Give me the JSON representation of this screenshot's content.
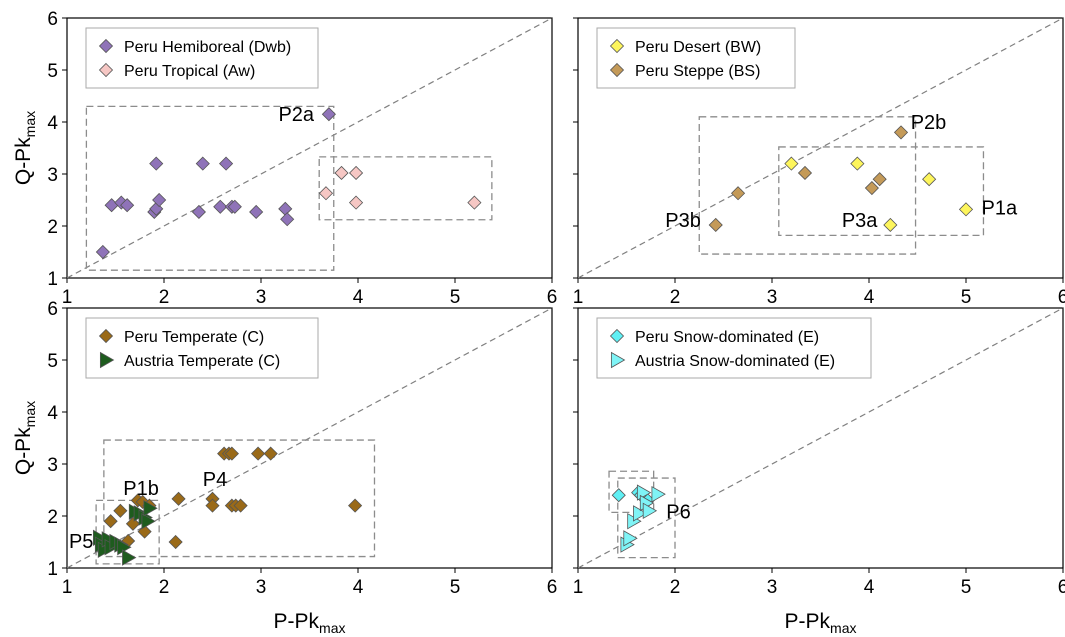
{
  "figure": {
    "x_label": "P-Pk",
    "x_label_sub": "max",
    "y_label": "Q-Pk",
    "y_label_sub": "max"
  },
  "chart_data": [
    {
      "type": "scatter",
      "xlim": [
        1,
        6
      ],
      "ylim": [
        1,
        6
      ],
      "x_ticks": [
        "1",
        "2",
        "3",
        "4",
        "5",
        "6"
      ],
      "y_ticks": [
        "1",
        "2",
        "3",
        "4",
        "5",
        "6"
      ],
      "legend_position": "top-left",
      "reference_line": "1:1 dashed diagonal",
      "series": [
        {
          "name": "Peru Hemiboreal (Dwb)",
          "marker": "diamond",
          "color": "#8f73b8",
          "points": [
            [
              1.37,
              1.5
            ],
            [
              1.46,
              2.4
            ],
            [
              1.56,
              2.45
            ],
            [
              1.62,
              2.4
            ],
            [
              1.9,
              2.27
            ],
            [
              1.92,
              2.33
            ],
            [
              1.95,
              2.5
            ],
            [
              1.92,
              3.2
            ],
            [
              2.4,
              3.2
            ],
            [
              2.64,
              3.2
            ],
            [
              2.36,
              2.27
            ],
            [
              2.58,
              2.37
            ],
            [
              2.7,
              2.37
            ],
            [
              2.73,
              2.37
            ],
            [
              2.95,
              2.27
            ],
            [
              3.25,
              2.33
            ],
            [
              3.27,
              2.13
            ],
            [
              3.7,
              4.15
            ]
          ]
        },
        {
          "name": "Peru Tropical (Aw)",
          "marker": "diamond",
          "color": "#f6c7c4",
          "points": [
            [
              3.67,
              2.63
            ],
            [
              3.83,
              3.02
            ],
            [
              3.98,
              3.02
            ],
            [
              3.98,
              2.45
            ],
            [
              5.2,
              2.45
            ]
          ]
        }
      ],
      "boxes": [
        {
          "x": [
            1.2,
            3.75
          ],
          "y": [
            1.15,
            4.3
          ]
        },
        {
          "x": [
            3.6,
            5.38
          ],
          "y": [
            2.12,
            3.33
          ]
        }
      ],
      "annotations": [
        {
          "text": "P2a",
          "x": 3.18,
          "y": 4.02
        }
      ]
    },
    {
      "type": "scatter",
      "xlim": [
        1,
        6
      ],
      "ylim": [
        1,
        6
      ],
      "x_ticks": [
        "1",
        "2",
        "3",
        "4",
        "5",
        "6"
      ],
      "y_ticks": [
        "1",
        "2",
        "3",
        "4",
        "5",
        "6"
      ],
      "legend_position": "top-left",
      "reference_line": "1:1 dashed diagonal",
      "series": [
        {
          "name": "Peru Desert (BW)",
          "marker": "diamond",
          "color": "#fdf55c",
          "points": [
            [
              3.2,
              3.2
            ],
            [
              3.88,
              3.2
            ],
            [
              4.22,
              2.02
            ],
            [
              4.62,
              2.9
            ],
            [
              5.0,
              2.32
            ]
          ]
        },
        {
          "name": "Peru Steppe (BS)",
          "marker": "diamond",
          "color": "#c49a58",
          "points": [
            [
              2.42,
              2.02
            ],
            [
              2.65,
              2.63
            ],
            [
              3.34,
              3.02
            ],
            [
              4.03,
              2.73
            ],
            [
              4.11,
              2.9
            ],
            [
              4.33,
              3.8
            ]
          ]
        }
      ],
      "boxes": [
        {
          "x": [
            2.25,
            4.48
          ],
          "y": [
            1.46,
            4.1
          ]
        },
        {
          "x": [
            3.07,
            5.18
          ],
          "y": [
            1.82,
            3.52
          ]
        }
      ],
      "annotations": [
        {
          "text": "P2b",
          "x": 4.43,
          "y": 3.87
        },
        {
          "text": "P3a",
          "x": 3.72,
          "y": 1.98
        },
        {
          "text": "P3b",
          "x": 1.9,
          "y": 1.98
        },
        {
          "text": "P1a",
          "x": 5.16,
          "y": 2.22
        }
      ]
    },
    {
      "type": "scatter",
      "xlim": [
        1,
        6
      ],
      "ylim": [
        1,
        6
      ],
      "x_ticks": [
        "1",
        "2",
        "3",
        "4",
        "5",
        "6"
      ],
      "y_ticks": [
        "1",
        "2",
        "3",
        "4",
        "5",
        "6"
      ],
      "xlabel": "P-Pk",
      "xlabel_sub": "max",
      "legend_position": "top-left",
      "reference_line": "1:1 dashed diagonal",
      "series": [
        {
          "name": "Peru Temperate (C)",
          "marker": "diamond",
          "color": "#9a6a18",
          "points": [
            [
              1.45,
              1.9
            ],
            [
              1.55,
              2.1
            ],
            [
              1.63,
              1.52
            ],
            [
              1.68,
              1.85
            ],
            [
              1.73,
              2.3
            ],
            [
              1.78,
              2.27
            ],
            [
              1.8,
              1.7
            ],
            [
              1.85,
              2.2
            ],
            [
              2.12,
              1.5
            ],
            [
              2.15,
              2.33
            ],
            [
              2.5,
              2.33
            ],
            [
              2.5,
              2.2
            ],
            [
              2.62,
              3.2
            ],
            [
              2.67,
              3.2
            ],
            [
              2.7,
              3.2
            ],
            [
              2.7,
              2.2
            ],
            [
              2.74,
              2.2
            ],
            [
              2.79,
              2.2
            ],
            [
              2.97,
              3.2
            ],
            [
              3.1,
              3.2
            ],
            [
              3.97,
              2.2
            ]
          ]
        },
        {
          "name": "Austria Temperate (C)",
          "marker": "triangle-right",
          "color": "#1e5c1e",
          "points": [
            [
              1.33,
              1.58
            ],
            [
              1.35,
              1.45
            ],
            [
              1.38,
              1.35
            ],
            [
              1.42,
              1.55
            ],
            [
              1.45,
              1.4
            ],
            [
              1.5,
              1.5
            ],
            [
              1.55,
              1.45
            ],
            [
              1.58,
              1.4
            ],
            [
              1.63,
              1.2
            ],
            [
              1.7,
              2.08
            ],
            [
              1.75,
              2.05
            ],
            [
              1.8,
              1.97
            ],
            [
              1.83,
              1.9
            ],
            [
              1.85,
              2.15
            ]
          ]
        }
      ],
      "boxes": [
        {
          "x": [
            1.38,
            4.17
          ],
          "y": [
            1.22,
            3.46
          ]
        },
        {
          "x": [
            1.3,
            1.95
          ],
          "y": [
            1.08,
            2.3
          ]
        }
      ],
      "annotations": [
        {
          "text": "P1b",
          "x": 1.58,
          "y": 2.4
        },
        {
          "text": "P4",
          "x": 2.4,
          "y": 2.58
        },
        {
          "text": "P5",
          "x": 1.02,
          "y": 1.38
        }
      ]
    },
    {
      "type": "scatter",
      "xlim": [
        1,
        6
      ],
      "ylim": [
        1,
        6
      ],
      "x_ticks": [
        "1",
        "2",
        "3",
        "4",
        "5",
        "6"
      ],
      "y_ticks": [
        "1",
        "2",
        "3",
        "4",
        "5",
        "6"
      ],
      "xlabel": "P-Pk",
      "xlabel_sub": "max",
      "legend_position": "top-left",
      "reference_line": "1:1 dashed diagonal",
      "series": [
        {
          "name": "Peru Snow-dominated (E)",
          "marker": "diamond",
          "color": "#5ff0f4",
          "points": [
            [
              1.42,
              2.4
            ],
            [
              1.62,
              2.45
            ],
            [
              1.65,
              2.4
            ],
            [
              1.72,
              2.3
            ]
          ]
        },
        {
          "name": "Austria Snow-dominated (E)",
          "marker": "triangle-right",
          "color": "#7ff4f6",
          "points": [
            [
              1.5,
              1.45
            ],
            [
              1.53,
              1.57
            ],
            [
              1.57,
              1.9
            ],
            [
              1.63,
              2.05
            ],
            [
              1.67,
              2.45
            ],
            [
              1.7,
              2.25
            ],
            [
              1.73,
              2.1
            ],
            [
              1.82,
              2.42
            ]
          ]
        }
      ],
      "boxes": [
        {
          "x": [
            1.32,
            1.78
          ],
          "y": [
            2.07,
            2.86
          ]
        },
        {
          "x": [
            1.41,
            2.0
          ],
          "y": [
            1.2,
            2.73
          ]
        }
      ],
      "annotations": [
        {
          "text": "P6",
          "x": 1.91,
          "y": 1.95
        }
      ]
    }
  ]
}
